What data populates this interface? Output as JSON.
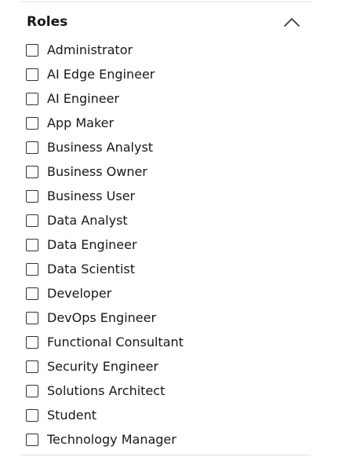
{
  "filter": {
    "title": "Roles",
    "expanded": true,
    "toggle_icon": "chevron-up-icon",
    "options": [
      {
        "label": "Administrator",
        "checked": false
      },
      {
        "label": "AI Edge Engineer",
        "checked": false
      },
      {
        "label": "AI Engineer",
        "checked": false
      },
      {
        "label": "App Maker",
        "checked": false
      },
      {
        "label": "Business Analyst",
        "checked": false
      },
      {
        "label": "Business Owner",
        "checked": false
      },
      {
        "label": "Business User",
        "checked": false
      },
      {
        "label": "Data Analyst",
        "checked": false
      },
      {
        "label": "Data Engineer",
        "checked": false
      },
      {
        "label": "Data Scientist",
        "checked": false
      },
      {
        "label": "Developer",
        "checked": false
      },
      {
        "label": "DevOps Engineer",
        "checked": false
      },
      {
        "label": "Functional Consultant",
        "checked": false
      },
      {
        "label": "Security Engineer",
        "checked": false
      },
      {
        "label": "Solutions Architect",
        "checked": false
      },
      {
        "label": "Student",
        "checked": false
      },
      {
        "label": "Technology Manager",
        "checked": false
      }
    ]
  }
}
